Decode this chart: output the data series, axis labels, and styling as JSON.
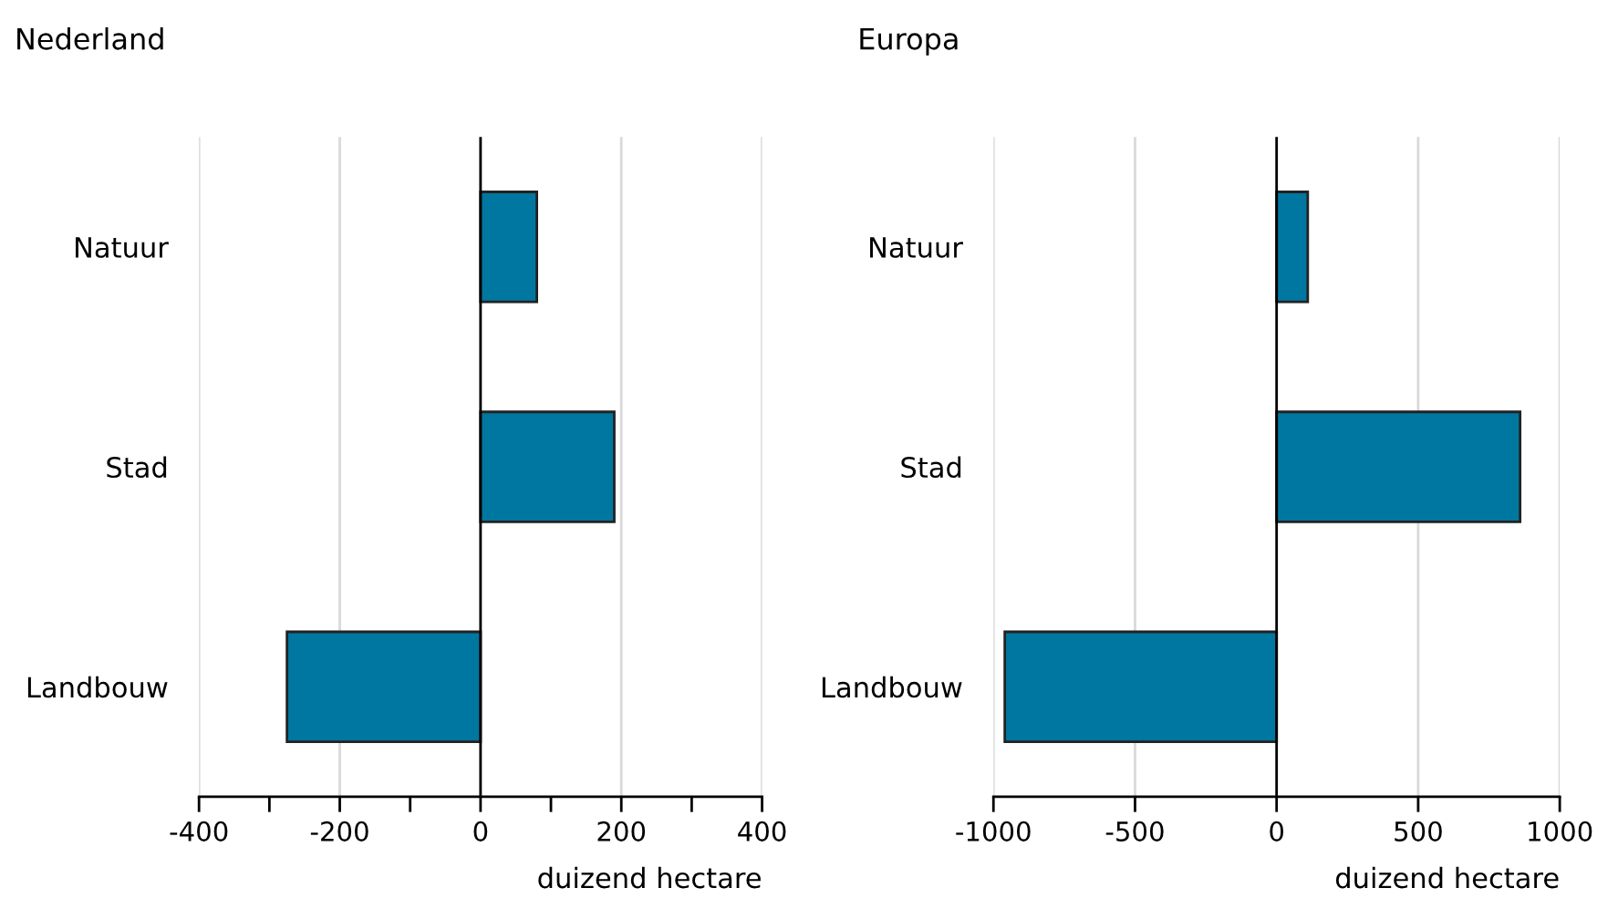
{
  "chart_data": [
    {
      "type": "bar",
      "orientation": "horizontal",
      "title": "Nederland",
      "xlabel": "duizend hectare",
      "categories": [
        "Natuur",
        "Stad",
        "Landbouw"
      ],
      "series": [
        {
          "color": "#0077a0",
          "values": [
            80,
            190,
            -275
          ]
        }
      ],
      "xlim": [
        -400,
        400
      ],
      "xticks": [
        -400,
        {
          "value": -300,
          "label": null
        },
        -200,
        {
          "value": -100,
          "label": null
        },
        0,
        {
          "value": 100,
          "label": null
        },
        200,
        {
          "value": 300,
          "label": null
        },
        400
      ],
      "grid": "x"
    },
    {
      "type": "bar",
      "orientation": "horizontal",
      "title": "Europa",
      "xlabel": "duizend hectare",
      "categories": [
        "Natuur",
        "Stad",
        "Landbouw"
      ],
      "series": [
        {
          "color": "#0077a0",
          "values": [
            110,
            860,
            -960
          ]
        }
      ],
      "xlim": [
        -1000,
        1000
      ],
      "xticks": [
        -1000,
        -500,
        0,
        500,
        1000
      ],
      "grid": "x"
    }
  ]
}
